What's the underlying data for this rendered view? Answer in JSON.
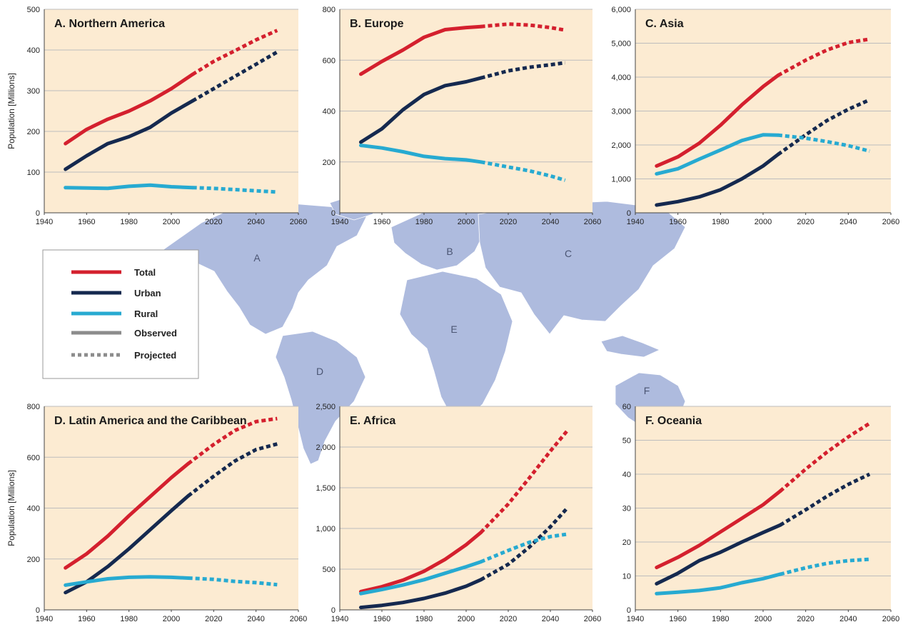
{
  "colors": {
    "total": "#d4202e",
    "urban": "#15294f",
    "rural": "#27aad1",
    "legend_grey": "#8c8c8c",
    "panel_bg": "#fcebd2",
    "grid": "#bdbdbd",
    "map": "#aebbde",
    "map_label": "#4b5573"
  },
  "legend": {
    "total": "Total",
    "urban": "Urban",
    "rural": "Rural",
    "observed": "Observed",
    "projected": "Projected"
  },
  "map_labels": [
    "A",
    "B",
    "C",
    "D",
    "E",
    "F"
  ],
  "chart_data": [
    {
      "type": "line",
      "title": "A. Northern America",
      "ylabel": "Population [Millions]",
      "xlim": [
        1940,
        2060
      ],
      "ylim": [
        0,
        500
      ],
      "xticks": [
        "1940",
        "1960",
        "1980",
        "2000",
        "2020",
        "2040",
        "2060"
      ],
      "yticks": [
        "0",
        "100",
        "200",
        "300",
        "400",
        "500"
      ],
      "observed_until": 2010,
      "grid": true,
      "series": [
        {
          "name": "Total",
          "x": [
            1950,
            1960,
            1970,
            1980,
            1990,
            2000,
            2010,
            2020,
            2030,
            2040,
            2050
          ],
          "values": [
            170,
            205,
            230,
            250,
            275,
            305,
            340,
            372,
            398,
            425,
            448
          ]
        },
        {
          "name": "Urban",
          "x": [
            1950,
            1960,
            1970,
            1980,
            1990,
            2000,
            2010,
            2020,
            2030,
            2040,
            2050
          ],
          "values": [
            107,
            140,
            170,
            187,
            210,
            245,
            275,
            305,
            335,
            365,
            395
          ]
        },
        {
          "name": "Rural",
          "x": [
            1950,
            1960,
            1970,
            1980,
            1990,
            2000,
            2010,
            2020,
            2030,
            2040,
            2050
          ],
          "values": [
            62,
            61,
            60,
            65,
            68,
            64,
            62,
            60,
            57,
            54,
            51
          ]
        }
      ]
    },
    {
      "type": "line",
      "title": "B. Europe",
      "ylabel": "",
      "xlim": [
        1940,
        2060
      ],
      "ylim": [
        0,
        800
      ],
      "xticks": [
        "1940",
        "1960",
        "1980",
        "2000",
        "2020",
        "2040",
        "2060"
      ],
      "yticks": [
        "0",
        "200",
        "400",
        "600",
        "800"
      ],
      "observed_until": 2007,
      "grid": true,
      "series": [
        {
          "name": "Total",
          "x": [
            1950,
            1960,
            1970,
            1980,
            1990,
            2000,
            2007,
            2020,
            2030,
            2040,
            2047
          ],
          "values": [
            545,
            595,
            640,
            690,
            720,
            728,
            732,
            742,
            738,
            728,
            718
          ]
        },
        {
          "name": "Urban",
          "x": [
            1950,
            1960,
            1970,
            1980,
            1990,
            2000,
            2007,
            2020,
            2030,
            2040,
            2047
          ],
          "values": [
            278,
            330,
            405,
            465,
            500,
            515,
            530,
            558,
            572,
            582,
            590
          ]
        },
        {
          "name": "Rural",
          "x": [
            1950,
            1960,
            1970,
            1980,
            1990,
            2000,
            2007,
            2020,
            2030,
            2040,
            2047
          ],
          "values": [
            265,
            255,
            240,
            222,
            213,
            208,
            200,
            180,
            165,
            145,
            128
          ]
        }
      ]
    },
    {
      "type": "line",
      "title": "C. Asia",
      "ylabel": "",
      "xlim": [
        1940,
        2060
      ],
      "ylim": [
        0,
        6000
      ],
      "xticks": [
        "1940",
        "1960",
        "1980",
        "2000",
        "2020",
        "2040",
        "2060"
      ],
      "yticks": [
        "0",
        "1,000",
        "2,000",
        "3,000",
        "4,000",
        "5,000",
        "6,000"
      ],
      "observed_until": 2007,
      "grid": true,
      "series": [
        {
          "name": "Total",
          "x": [
            1950,
            1960,
            1970,
            1980,
            1990,
            2000,
            2007,
            2020,
            2030,
            2040,
            2050
          ],
          "values": [
            1380,
            1650,
            2050,
            2580,
            3180,
            3720,
            4050,
            4500,
            4800,
            5020,
            5120
          ]
        },
        {
          "name": "Urban",
          "x": [
            1950,
            1960,
            1970,
            1980,
            1990,
            2000,
            2007,
            2020,
            2030,
            2040,
            2050
          ],
          "values": [
            230,
            330,
            470,
            680,
            1000,
            1380,
            1720,
            2300,
            2720,
            3050,
            3330
          ]
        },
        {
          "name": "Rural",
          "x": [
            1950,
            1960,
            1970,
            1980,
            1990,
            2000,
            2007,
            2020,
            2030,
            2040,
            2050
          ],
          "values": [
            1150,
            1300,
            1580,
            1850,
            2130,
            2300,
            2290,
            2200,
            2100,
            1980,
            1820
          ]
        }
      ]
    },
    {
      "type": "line",
      "title": "D. Latin America and the Caribbean",
      "ylabel": "Population [Millions]",
      "xlim": [
        1940,
        2060
      ],
      "ylim": [
        0,
        800
      ],
      "xticks": [
        "1940",
        "1960",
        "1980",
        "2000",
        "2020",
        "2040",
        "2060"
      ],
      "yticks": [
        "0",
        "200",
        "400",
        "600",
        "800"
      ],
      "observed_until": 2008,
      "grid": true,
      "series": [
        {
          "name": "Total",
          "x": [
            1950,
            1960,
            1970,
            1980,
            1990,
            2000,
            2008,
            2020,
            2030,
            2040,
            2050
          ],
          "values": [
            165,
            220,
            290,
            370,
            445,
            520,
            575,
            650,
            705,
            740,
            752
          ]
        },
        {
          "name": "Urban",
          "x": [
            1950,
            1960,
            1970,
            1980,
            1990,
            2000,
            2008,
            2020,
            2030,
            2040,
            2050
          ],
          "values": [
            68,
            110,
            170,
            240,
            315,
            390,
            448,
            525,
            585,
            630,
            652
          ]
        },
        {
          "name": "Rural",
          "x": [
            1950,
            1960,
            1970,
            1980,
            1990,
            2000,
            2008,
            2020,
            2030,
            2040,
            2050
          ],
          "values": [
            97,
            110,
            122,
            128,
            130,
            128,
            125,
            120,
            112,
            107,
            99
          ]
        }
      ]
    },
    {
      "type": "line",
      "title": "E. Africa",
      "ylabel": "",
      "xlim": [
        1940,
        2060
      ],
      "ylim": [
        0,
        2500
      ],
      "xticks": [
        "1940",
        "1960",
        "1980",
        "2000",
        "2020",
        "2040",
        "2060"
      ],
      "yticks": [
        "0",
        "500",
        "1,000",
        "1,500",
        "2,000",
        "2,500"
      ],
      "observed_until": 2007,
      "grid": true,
      "series": [
        {
          "name": "Total",
          "x": [
            1950,
            1960,
            1970,
            1980,
            1990,
            2000,
            2007,
            2020,
            2030,
            2040,
            2048
          ],
          "values": [
            225,
            285,
            365,
            475,
            620,
            800,
            950,
            1300,
            1620,
            1950,
            2200
          ]
        },
        {
          "name": "Urban",
          "x": [
            1950,
            1960,
            1970,
            1980,
            1990,
            2000,
            2007,
            2020,
            2030,
            2040,
            2048
          ],
          "values": [
            30,
            55,
            90,
            140,
            205,
            290,
            370,
            560,
            770,
            1020,
            1250
          ]
        },
        {
          "name": "Rural",
          "x": [
            1950,
            1960,
            1970,
            1980,
            1990,
            2000,
            2007,
            2020,
            2030,
            2040,
            2048
          ],
          "values": [
            200,
            250,
            305,
            370,
            450,
            530,
            590,
            730,
            830,
            900,
            930
          ]
        }
      ]
    },
    {
      "type": "line",
      "title": "F. Oceania",
      "ylabel": "",
      "xlim": [
        1940,
        2060
      ],
      "ylim": [
        0,
        60
      ],
      "xticks": [
        "1940",
        "1960",
        "1980",
        "2000",
        "2020",
        "2040",
        "2060"
      ],
      "yticks": [
        "0",
        "10",
        "20",
        "30",
        "40",
        "50",
        "60"
      ],
      "observed_until": 2008,
      "grid": true,
      "series": [
        {
          "name": "Total",
          "x": [
            1950,
            1960,
            1970,
            1980,
            1990,
            2000,
            2008,
            2020,
            2030,
            2040,
            2050
          ],
          "values": [
            12.5,
            15.5,
            19,
            23,
            27,
            31,
            35,
            41.5,
            46.5,
            51,
            55
          ]
        },
        {
          "name": "Urban",
          "x": [
            1950,
            1960,
            1970,
            1980,
            1990,
            2000,
            2008,
            2020,
            2030,
            2040,
            2050
          ],
          "values": [
            7.7,
            10.8,
            14.5,
            17,
            20,
            22.8,
            25,
            29.5,
            33.5,
            37,
            40
          ]
        },
        {
          "name": "Rural",
          "x": [
            1950,
            1960,
            1970,
            1980,
            1990,
            2000,
            2008,
            2020,
            2030,
            2040,
            2050
          ],
          "values": [
            4.8,
            5.2,
            5.7,
            6.5,
            8,
            9.2,
            10.5,
            12.4,
            13.7,
            14.5,
            14.9
          ]
        }
      ]
    }
  ]
}
